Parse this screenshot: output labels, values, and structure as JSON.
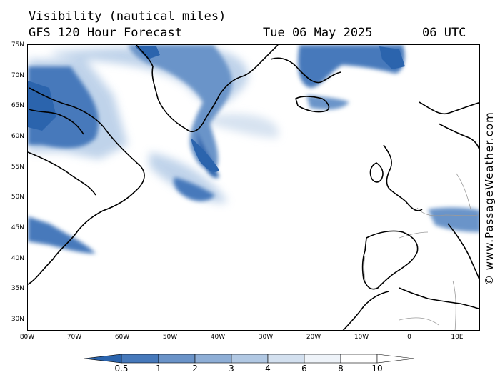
{
  "header": {
    "title": "Visibility (nautical miles)",
    "subtitle": "GFS 120 Hour Forecast",
    "date": "Tue 06 May 2025",
    "time": "06 UTC"
  },
  "map": {
    "lat_labels": [
      "75N",
      "70N",
      "65N",
      "60N",
      "55N",
      "50N",
      "45N",
      "40N",
      "35N",
      "30N"
    ],
    "lon_labels": [
      "80W",
      "70W",
      "60W",
      "50W",
      "40W",
      "30W",
      "20W",
      "10W",
      "0",
      "10E"
    ]
  },
  "legend": {
    "labels": [
      "0.5",
      "1",
      "2",
      "3",
      "4",
      "6",
      "8",
      "10"
    ],
    "colors": [
      "#2b64ad",
      "#4679bb",
      "#6a93c8",
      "#8eaed6",
      "#b1c8e3",
      "#d3e0ef",
      "#eef3f9",
      "#ffffff"
    ]
  },
  "watermark": "© www.PassageWeather.com",
  "colors": {
    "coast": "#000000",
    "borders": "#9a9a9a",
    "dark": "#2d66b0",
    "mid": "#6b94c9",
    "light": "#b9cfe8"
  }
}
